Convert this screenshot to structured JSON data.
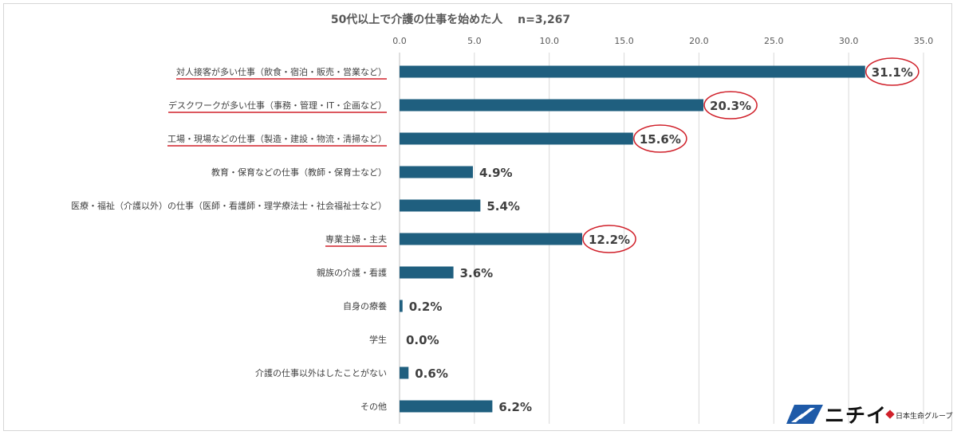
{
  "chart_data": {
    "type": "bar",
    "orientation": "horizontal",
    "title": "50代以上で介護の仕事を始めた人 　n=3,267",
    "categories": [
      "対人接客が多い仕事（飲食・宿泊・販売・営業など）",
      "デスクワークが多い仕事（事務・管理・IT・企画など）",
      "工場・現場などの仕事（製造・建設・物流・清掃など）",
      "教育・保育などの仕事（教師・保育士など）",
      "医療・福祉（介護以外）の仕事（医師・看護師・理学療法士・社会福祉士など）",
      "専業主婦・主夫",
      "親族の介護・看護",
      "自身の療養",
      "学生",
      "介護の仕事以外はしたことがない",
      "その他"
    ],
    "values": [
      31.1,
      20.3,
      15.6,
      4.9,
      5.4,
      12.2,
      3.6,
      0.2,
      0.0,
      0.6,
      6.2
    ],
    "value_labels": [
      "31.1%",
      "20.3%",
      "15.6%",
      "4.9%",
      "5.4%",
      "12.2%",
      "3.6%",
      "0.2%",
      "0.0%",
      "0.6%",
      "6.2%"
    ],
    "highlighted_categories": [
      0,
      1,
      2,
      5
    ],
    "xlim": [
      0,
      35
    ],
    "ticks": [
      0,
      5,
      10,
      15,
      20,
      25,
      30,
      35
    ],
    "tick_labels": [
      "0.0",
      "5.0",
      "10.0",
      "15.0",
      "20.0",
      "25.0",
      "30.0",
      "35.0"
    ],
    "axis_position": "top",
    "grid": true,
    "bar_color": "#1f5f7f",
    "highlight_color": "#d0202a",
    "gridline_color": "#d9d9d9"
  },
  "logo": {
    "name": "ニチイ",
    "sub": "日本生命グループ",
    "icon": "nichii-logo-mark"
  }
}
